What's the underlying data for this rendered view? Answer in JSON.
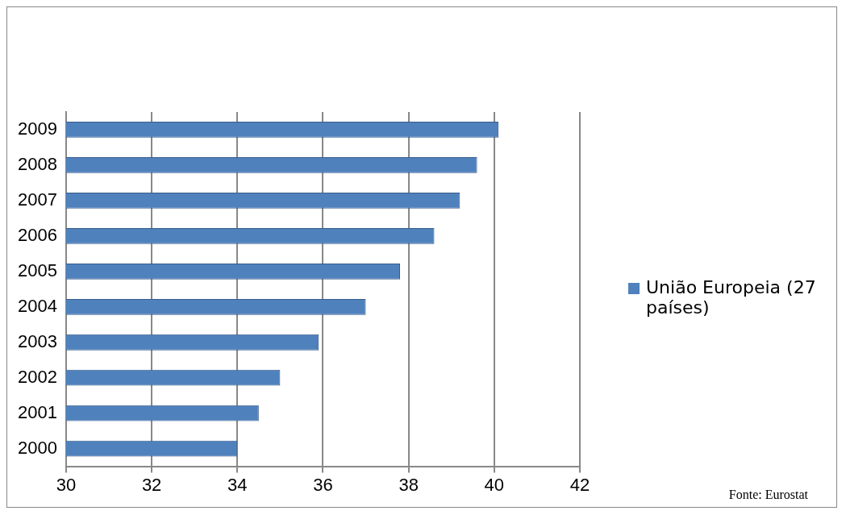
{
  "chart_data": {
    "type": "bar",
    "orientation": "horizontal",
    "categories": [
      "2009",
      "2008",
      "2007",
      "2006",
      "2005",
      "2004",
      "2003",
      "2002",
      "2001",
      "2000"
    ],
    "series": [
      {
        "name": "União Europeia (27 países)",
        "color": "#4f81bd",
        "values": [
          40.1,
          39.6,
          39.2,
          38.6,
          37.8,
          37.0,
          35.9,
          35.0,
          34.5,
          34.0
        ]
      }
    ],
    "xlim": [
      30,
      42
    ],
    "xticks": [
      30,
      32,
      34,
      36,
      38,
      40,
      42
    ],
    "grid": "x",
    "legend": "right",
    "annotations": [
      "Fonte: Eurostat"
    ]
  }
}
